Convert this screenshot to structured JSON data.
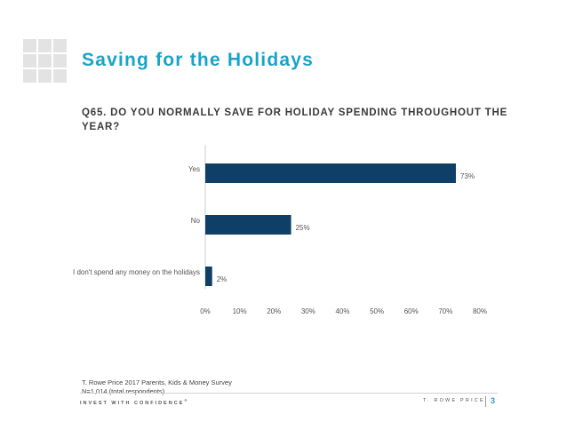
{
  "slide": {
    "title": "Saving for the Holidays",
    "question": "Q65. DO YOU NORMALLY SAVE FOR HOLIDAY SPENDING THROUGHOUT THE YEAR?",
    "footnote_source": "T. Rowe Price 2017 Parents, Kids & Money Survey",
    "footnote_base": "N=1,014 (total respondents)",
    "tagline": "INVEST WITH CONFIDENCE",
    "tagline_mark": "®",
    "brand": "T. ROWE PRICE",
    "page_number": "3"
  },
  "colors": {
    "title": "#1aa3c8",
    "bar": "#0f3f66",
    "axis": "#cfcfcf",
    "text": "#555555"
  },
  "chart_data": {
    "type": "bar",
    "orientation": "horizontal",
    "categories": [
      "Yes",
      "No",
      "I don't spend any money on the holidays"
    ],
    "values": [
      73,
      25,
      2
    ],
    "data_labels": [
      "73%",
      "25%",
      "2%"
    ],
    "xlim": [
      0,
      80
    ],
    "x_ticks": [
      0,
      10,
      20,
      30,
      40,
      50,
      60,
      70,
      80
    ],
    "x_tick_labels": [
      "0%",
      "10%",
      "20%",
      "30%",
      "40%",
      "50%",
      "60%",
      "70%",
      "80%"
    ],
    "grid": false,
    "legend": "none"
  }
}
